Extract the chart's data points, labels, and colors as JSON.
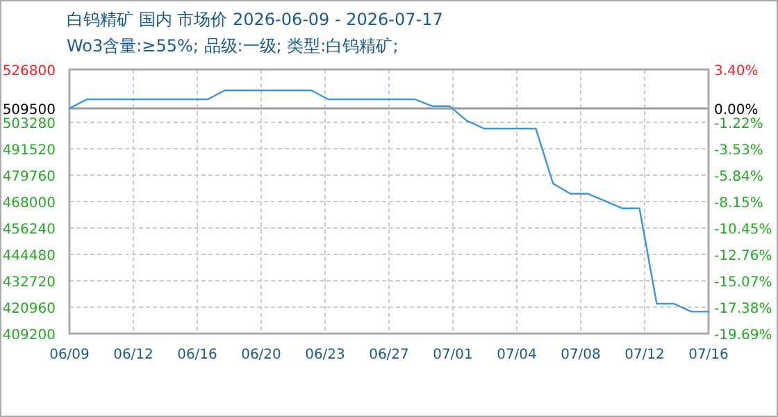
{
  "chart_data": {
    "type": "line",
    "title": "白钨精矿 国内 市场价 2026-06-09 - 2026-07-17",
    "subtitle": "Wo3含量:≥55%; 品级:一级; 类型:白钨精矿;",
    "x": [
      "2026-06-09",
      "2026-06-10",
      "2026-06-17",
      "2026-06-18",
      "2026-06-23",
      "2026-06-24",
      "2026-06-29",
      "2026-06-30",
      "2026-07-01",
      "2026-07-02",
      "2026-07-03",
      "2026-07-06",
      "2026-07-07",
      "2026-07-08",
      "2026-07-09",
      "2026-07-11",
      "2026-07-12",
      "2026-07-13",
      "2026-07-14",
      "2026-07-15",
      "2026-07-16"
    ],
    "series": [
      {
        "color": "#3a96d8",
        "values": [
          509500,
          513500,
          513500,
          517500,
          517500,
          513500,
          513500,
          510500,
          510500,
          504000,
          500500,
          500500,
          476000,
          471500,
          471500,
          465000,
          465000,
          422500,
          422500,
          419000,
          419000
        ]
      }
    ],
    "xlim": [
      "2026-06-09",
      "2026-07-16"
    ],
    "xticks": [
      {
        "value": "2026-06-09T00:00",
        "label": "06/09"
      },
      {
        "value": "2026-06-12T16:48",
        "label": "06/12"
      },
      {
        "value": "2026-06-16T09:36",
        "label": "06/16"
      },
      {
        "value": "2026-06-20T02:24",
        "label": "06/20"
      },
      {
        "value": "2026-06-23T19:12",
        "label": "06/23"
      },
      {
        "value": "2026-06-27T12:00",
        "label": "06/27"
      },
      {
        "value": "2026-07-01T04:48",
        "label": "07/01"
      },
      {
        "value": "2026-07-04T21:36",
        "label": "07/04"
      },
      {
        "value": "2026-07-08T14:24",
        "label": "07/08"
      },
      {
        "value": "2026-07-12T07:12",
        "label": "07/12"
      },
      {
        "value": "2026-07-16T00:00",
        "label": "07/16"
      }
    ],
    "ylim": [
      409200,
      526800
    ],
    "yticks": [
      526800,
      509500,
      503280,
      491520,
      479760,
      468000,
      456240,
      444480,
      432720,
      420960,
      409200
    ],
    "y2lim": [
      -19.69,
      3.4
    ],
    "y2ticks": [
      {
        "value": 3.4,
        "label": "3.40%"
      },
      {
        "value": 0,
        "label": "0.00%"
      },
      {
        "value": -1.22,
        "label": "-1.22%"
      },
      {
        "value": -3.53,
        "label": "-3.53%"
      },
      {
        "value": -5.84,
        "label": "-5.84%"
      },
      {
        "value": -8.15,
        "label": "-8.15%"
      },
      {
        "value": -10.45,
        "label": "-10.45%"
      },
      {
        "value": -12.76,
        "label": "-12.76%"
      },
      {
        "value": -15.07,
        "label": "-15.07%"
      },
      {
        "value": -17.38,
        "label": "-17.38%"
      },
      {
        "value": -19.69,
        "label": "-19.69%"
      }
    ],
    "ref_lines": [
      {
        "axis": "y",
        "value": 509500,
        "color": "#999999"
      }
    ],
    "grid": true,
    "line_style": "solid"
  }
}
